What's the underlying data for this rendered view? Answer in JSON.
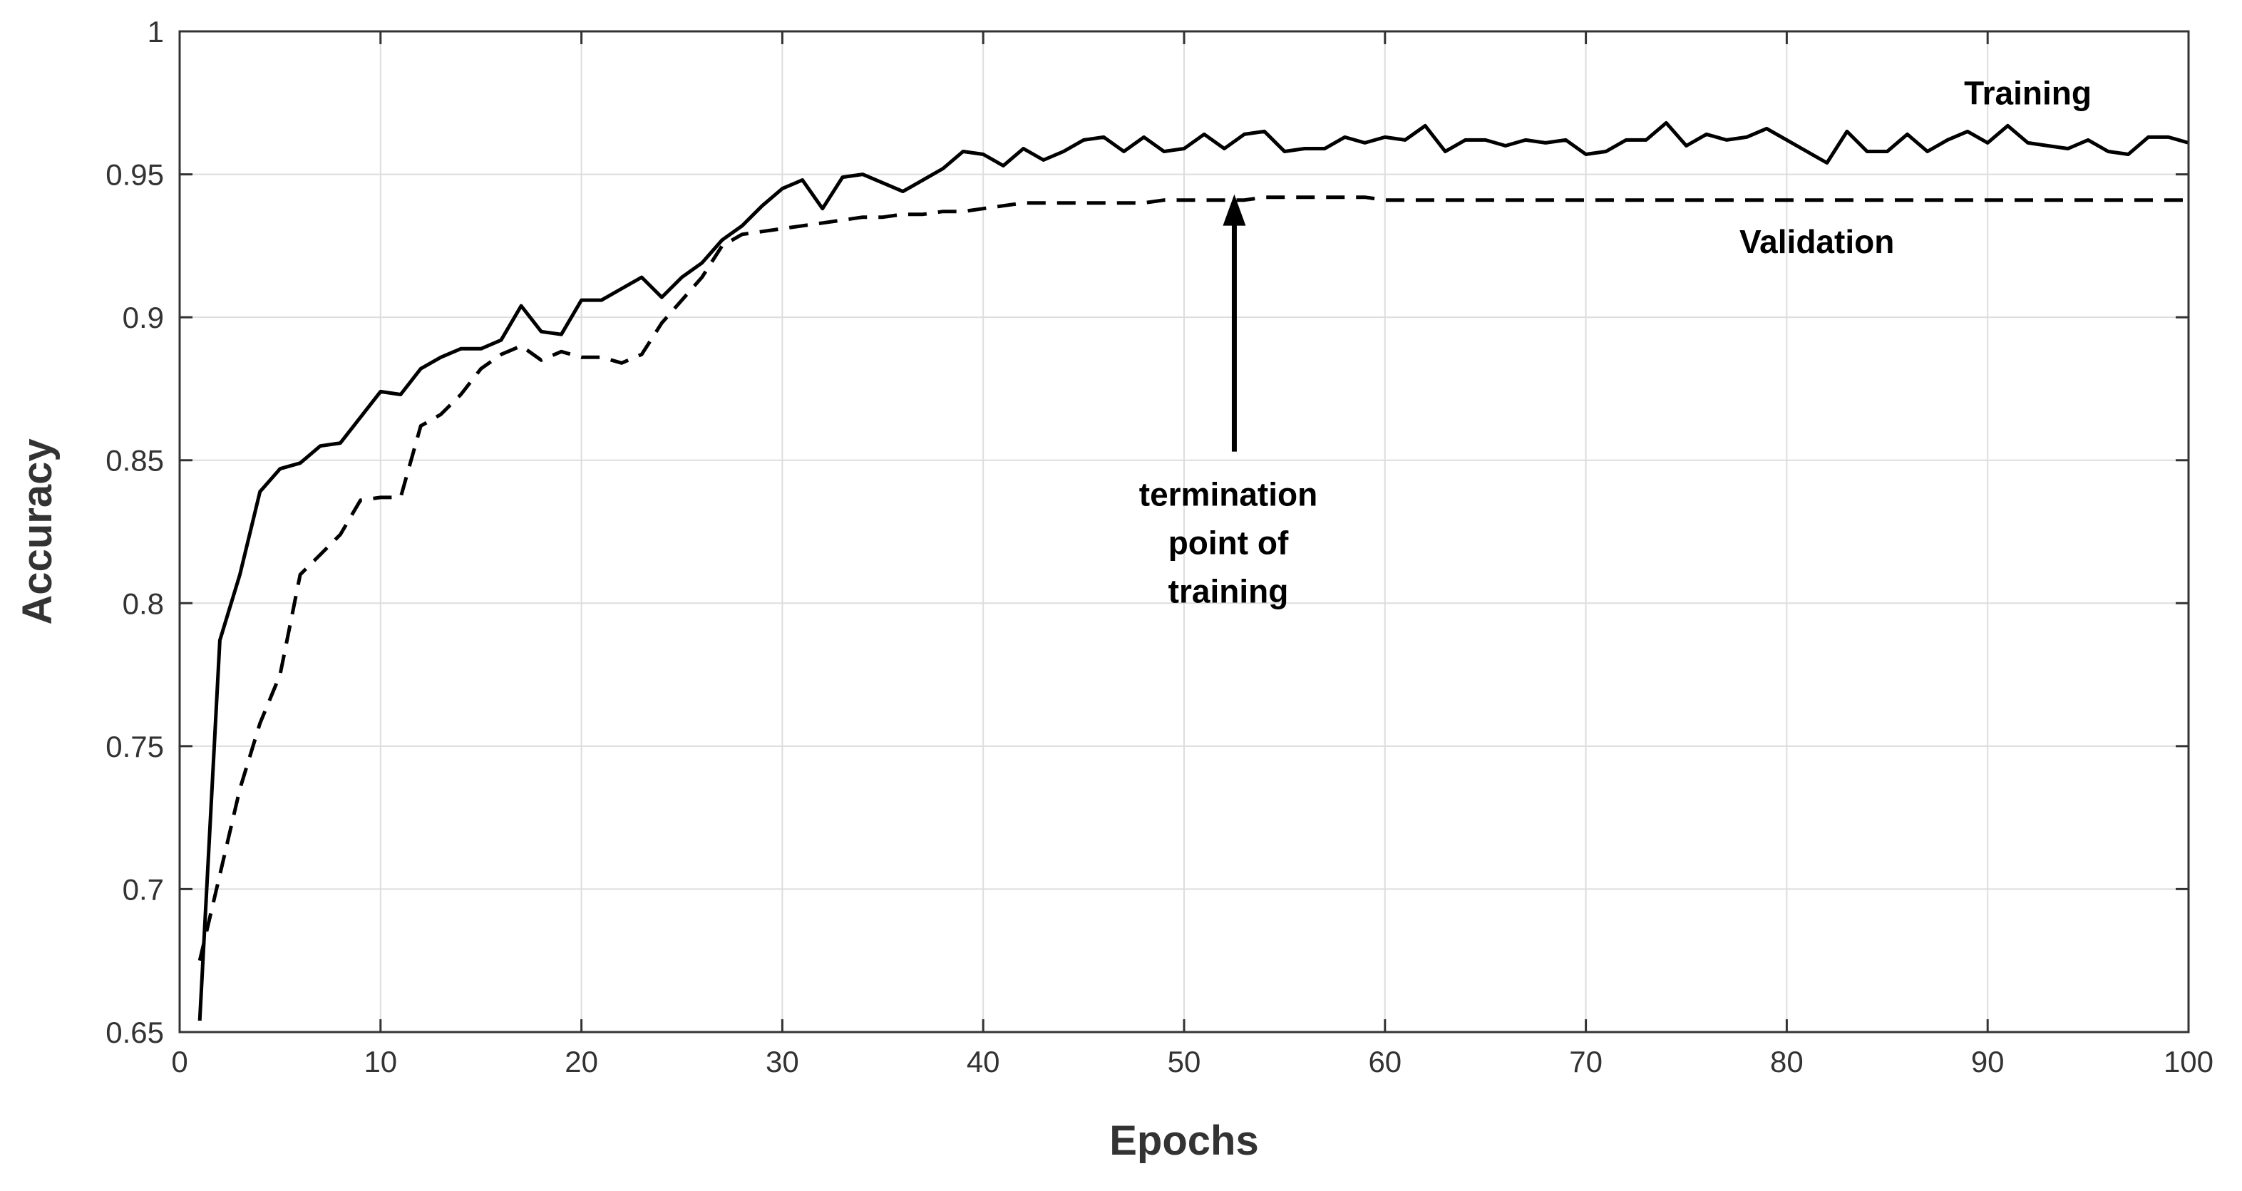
{
  "chart_data": {
    "type": "line",
    "title": "",
    "xlabel": "Epochs",
    "ylabel": "Accuracy",
    "xlim": [
      0,
      100
    ],
    "ylim": [
      0.65,
      1
    ],
    "xticks": [
      0,
      10,
      20,
      30,
      40,
      50,
      60,
      70,
      80,
      90,
      100
    ],
    "yticks": [
      0.65,
      0.7,
      0.75,
      0.8,
      0.85,
      0.9,
      0.95,
      1
    ],
    "xtick_labels": [
      "0",
      "10",
      "20",
      "30",
      "40",
      "50",
      "60",
      "70",
      "80",
      "90",
      "100"
    ],
    "ytick_labels": [
      "0.65",
      "0.7",
      "0.75",
      "0.8",
      "0.85",
      "0.9",
      "0.95",
      "1"
    ],
    "grid": true,
    "series": [
      {
        "name": "Training",
        "style": "solid",
        "color": "#000000",
        "x": [
          1,
          2,
          3,
          4,
          5,
          6,
          7,
          8,
          9,
          10,
          11,
          12,
          13,
          14,
          15,
          16,
          17,
          18,
          19,
          20,
          21,
          22,
          23,
          24,
          25,
          26,
          27,
          28,
          29,
          30,
          31,
          32,
          33,
          34,
          35,
          36,
          37,
          38,
          39,
          40,
          41,
          42,
          43,
          44,
          45,
          46,
          47,
          48,
          49,
          50,
          51,
          52,
          53,
          54,
          55,
          56,
          57,
          58,
          59,
          60,
          61,
          62,
          63,
          64,
          65,
          66,
          67,
          68,
          69,
          70,
          71,
          72,
          73,
          74,
          75,
          76,
          77,
          78,
          79,
          80,
          81,
          82,
          83,
          84,
          85,
          86,
          87,
          88,
          89,
          90,
          91,
          92,
          93,
          94,
          95,
          96,
          97,
          98,
          99,
          100
        ],
        "values": [
          0.654,
          0.787,
          0.81,
          0.839,
          0.847,
          0.849,
          0.855,
          0.856,
          0.865,
          0.874,
          0.873,
          0.882,
          0.886,
          0.889,
          0.889,
          0.892,
          0.904,
          0.895,
          0.894,
          0.906,
          0.906,
          0.91,
          0.914,
          0.907,
          0.914,
          0.919,
          0.927,
          0.932,
          0.939,
          0.945,
          0.948,
          0.938,
          0.949,
          0.95,
          0.947,
          0.944,
          0.948,
          0.952,
          0.958,
          0.957,
          0.953,
          0.959,
          0.955,
          0.958,
          0.962,
          0.963,
          0.958,
          0.963,
          0.958,
          0.959,
          0.964,
          0.959,
          0.964,
          0.965,
          0.958,
          0.959,
          0.959,
          0.963,
          0.961,
          0.963,
          0.962,
          0.967,
          0.958,
          0.962,
          0.962,
          0.96,
          0.962,
          0.961,
          0.962,
          0.957,
          0.958,
          0.962,
          0.962,
          0.968,
          0.96,
          0.964,
          0.962,
          0.963,
          0.966,
          0.962,
          0.958,
          0.954,
          0.965,
          0.958,
          0.958,
          0.964,
          0.958,
          0.962,
          0.965,
          0.961,
          0.967,
          0.961,
          0.96,
          0.959,
          0.962,
          0.958,
          0.957,
          0.963,
          0.963,
          0.961
        ]
      },
      {
        "name": "Validation",
        "style": "dashed",
        "color": "#000000",
        "x": [
          1,
          2,
          3,
          4,
          5,
          6,
          7,
          8,
          9,
          10,
          11,
          12,
          13,
          14,
          15,
          16,
          17,
          18,
          19,
          20,
          21,
          22,
          23,
          24,
          25,
          26,
          27,
          28,
          29,
          30,
          31,
          32,
          33,
          34,
          35,
          36,
          37,
          38,
          39,
          40,
          41,
          42,
          43,
          44,
          45,
          46,
          47,
          48,
          49,
          50,
          51,
          52,
          53,
          54,
          55,
          56,
          57,
          58,
          59,
          60,
          61,
          62,
          63,
          64,
          65,
          66,
          67,
          68,
          69,
          70,
          71,
          72,
          73,
          74,
          75,
          76,
          77,
          78,
          79,
          80,
          81,
          82,
          83,
          84,
          85,
          86,
          87,
          88,
          89,
          90,
          91,
          92,
          93,
          94,
          95,
          96,
          97,
          98,
          99,
          100
        ],
        "values": [
          0.675,
          0.705,
          0.735,
          0.758,
          0.775,
          0.81,
          0.817,
          0.824,
          0.836,
          0.837,
          0.837,
          0.862,
          0.866,
          0.873,
          0.882,
          0.887,
          0.89,
          0.885,
          0.888,
          0.886,
          0.886,
          0.884,
          0.887,
          0.898,
          0.906,
          0.914,
          0.925,
          0.929,
          0.93,
          0.931,
          0.932,
          0.933,
          0.934,
          0.935,
          0.935,
          0.936,
          0.936,
          0.937,
          0.937,
          0.938,
          0.939,
          0.94,
          0.94,
          0.94,
          0.94,
          0.94,
          0.94,
          0.94,
          0.941,
          0.941,
          0.941,
          0.941,
          0.941,
          0.942,
          0.942,
          0.942,
          0.942,
          0.942,
          0.942,
          0.941,
          0.941,
          0.941,
          0.941,
          0.941,
          0.941,
          0.941,
          0.941,
          0.941,
          0.941,
          0.941,
          0.941,
          0.941,
          0.941,
          0.941,
          0.941,
          0.941,
          0.941,
          0.941,
          0.941,
          0.941,
          0.941,
          0.941,
          0.941,
          0.941,
          0.941,
          0.941,
          0.941,
          0.941,
          0.941,
          0.941,
          0.941,
          0.941,
          0.941,
          0.941,
          0.941,
          0.941,
          0.941,
          0.941,
          0.941,
          0.941
        ]
      }
    ],
    "annotations": [
      {
        "lines": [
          "termination",
          "point of",
          "training"
        ],
        "arrow_from": [
          52.5,
          0.853
        ],
        "arrow_to": [
          52.5,
          0.943
        ]
      }
    ]
  }
}
